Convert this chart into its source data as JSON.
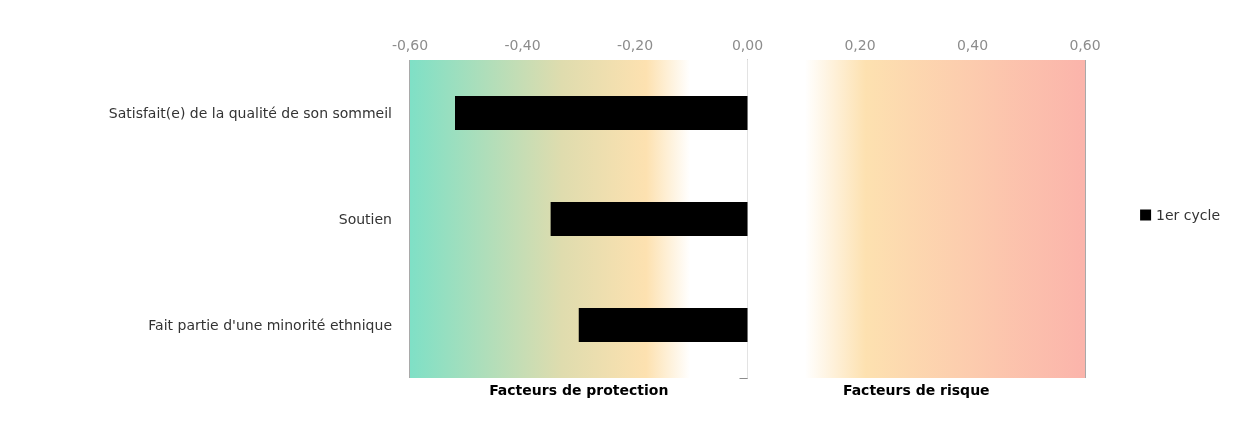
{
  "chart_data": {
    "type": "bar",
    "orientation": "horizontal",
    "categories": [
      "Satisfait(e) de la qualité de son sommeil",
      "Soutien",
      "Fait partie d'une minorité ethnique"
    ],
    "series": [
      {
        "name": "1er cycle",
        "color": "#000000",
        "values": [
          -0.52,
          -0.35,
          -0.3
        ]
      }
    ],
    "xlim": [
      -0.6,
      0.6
    ],
    "xticks": [
      {
        "value": -0.6,
        "label": "-0,60"
      },
      {
        "value": -0.4,
        "label": "-0,40"
      },
      {
        "value": -0.2,
        "label": "-0,20"
      },
      {
        "value": 0,
        "label": "0,00"
      },
      {
        "value": 0.2,
        "label": "0,20"
      },
      {
        "value": 0.4,
        "label": "0,40"
      },
      {
        "value": 0.6,
        "label": "0,60"
      }
    ],
    "bands": [
      {
        "axis": "x",
        "from": -0.6,
        "to": 0,
        "label": "Facteurs de protection",
        "color": "#7fe0c6"
      },
      {
        "axis": "x",
        "from": 0,
        "to": 0.6,
        "label": "Facteurs de risque",
        "color": "#fbb4ab"
      }
    ],
    "grid": "x",
    "legend": "right"
  }
}
